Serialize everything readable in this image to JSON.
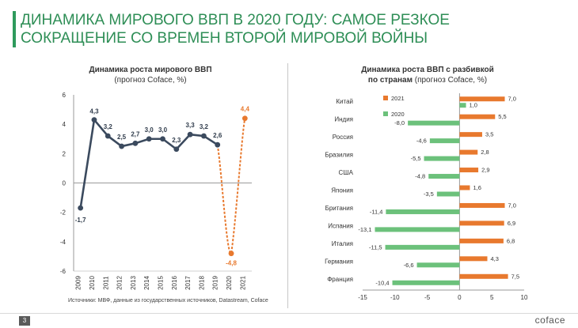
{
  "page": {
    "title": "ДИНАМИКА МИРОВОГО ВВП В 2020 ГОДУ: САМОЕ РЕЗКОЕ СОКРАЩЕНИЕ СО ВРЕМЕН ВТОРОЙ МИРОВОЙ ВОЙНЫ",
    "page_number": "3",
    "logo": "coface",
    "source": "Источники: МВФ, данные из государственных источников, Datastream, Coface"
  },
  "colors": {
    "accent": "#2e9a5c",
    "line": "#3b4a5e",
    "forecast": "#e8792e",
    "bar2021": "#e8792e",
    "bar2020": "#6cc17b"
  },
  "chart_data": [
    {
      "type": "line",
      "title": "Динамика роста мирового ВВП",
      "subtitle": "(прогноз Coface, %)",
      "x": [
        "2009",
        "2010",
        "2011",
        "2012",
        "2013",
        "2014",
        "2015",
        "2016",
        "2017",
        "2018",
        "2019",
        "2020",
        "2021"
      ],
      "values": [
        -1.7,
        4.3,
        3.2,
        2.5,
        2.7,
        3.0,
        3.0,
        2.3,
        3.3,
        3.2,
        2.6,
        -4.8,
        4.4
      ],
      "labels": [
        "-1,7",
        "4,3",
        "3,2",
        "2,5",
        "2,7",
        "3,0",
        "3,0",
        "2,3",
        "3,3",
        "3,2",
        "2,6",
        "-4,8",
        "4,4"
      ],
      "forecast_from_index": 10,
      "ylim": [
        -6,
        6
      ],
      "yticks": [
        "-6",
        "-4",
        "-2",
        "0",
        "2",
        "4",
        "6"
      ],
      "grid": false
    },
    {
      "type": "bar",
      "orientation": "horizontal",
      "title": "Динамика роста ВВП с разбивкой",
      "subtitle_bold": "по странам",
      "subtitle": "(прогноз Coface, %)",
      "categories": [
        "Китай",
        "Индия",
        "Россия",
        "Бразилия",
        "США",
        "Япония",
        "Британия",
        "Испания",
        "Италия",
        "Германия",
        "Франция"
      ],
      "series": [
        {
          "name": "2021",
          "values": [
            7.0,
            5.5,
            3.5,
            2.8,
            2.9,
            1.6,
            7.0,
            6.9,
            6.8,
            4.3,
            7.5
          ],
          "labels": [
            "7,0",
            "5,5",
            "3,5",
            "2,8",
            "2,9",
            "1,6",
            "7,0",
            "6,9",
            "6,8",
            "4,3",
            "7,5"
          ]
        },
        {
          "name": "2020",
          "values": [
            1.0,
            -8.0,
            -4.6,
            -5.5,
            -4.8,
            -3.5,
            -11.4,
            -13.1,
            -11.5,
            -6.6,
            -10.4
          ],
          "labels": [
            "1,0",
            "-8,0",
            "-4,6",
            "-5,5",
            "-4,8",
            "-3,5",
            "-11,4",
            "-13,1",
            "-11,5",
            "-6,6",
            "-10,4"
          ]
        }
      ],
      "xlim": [
        -15,
        10
      ],
      "xticks": [
        "-15",
        "-10",
        "-5",
        "0",
        "5",
        "10"
      ],
      "legend": "top-right",
      "grid": false
    }
  ]
}
